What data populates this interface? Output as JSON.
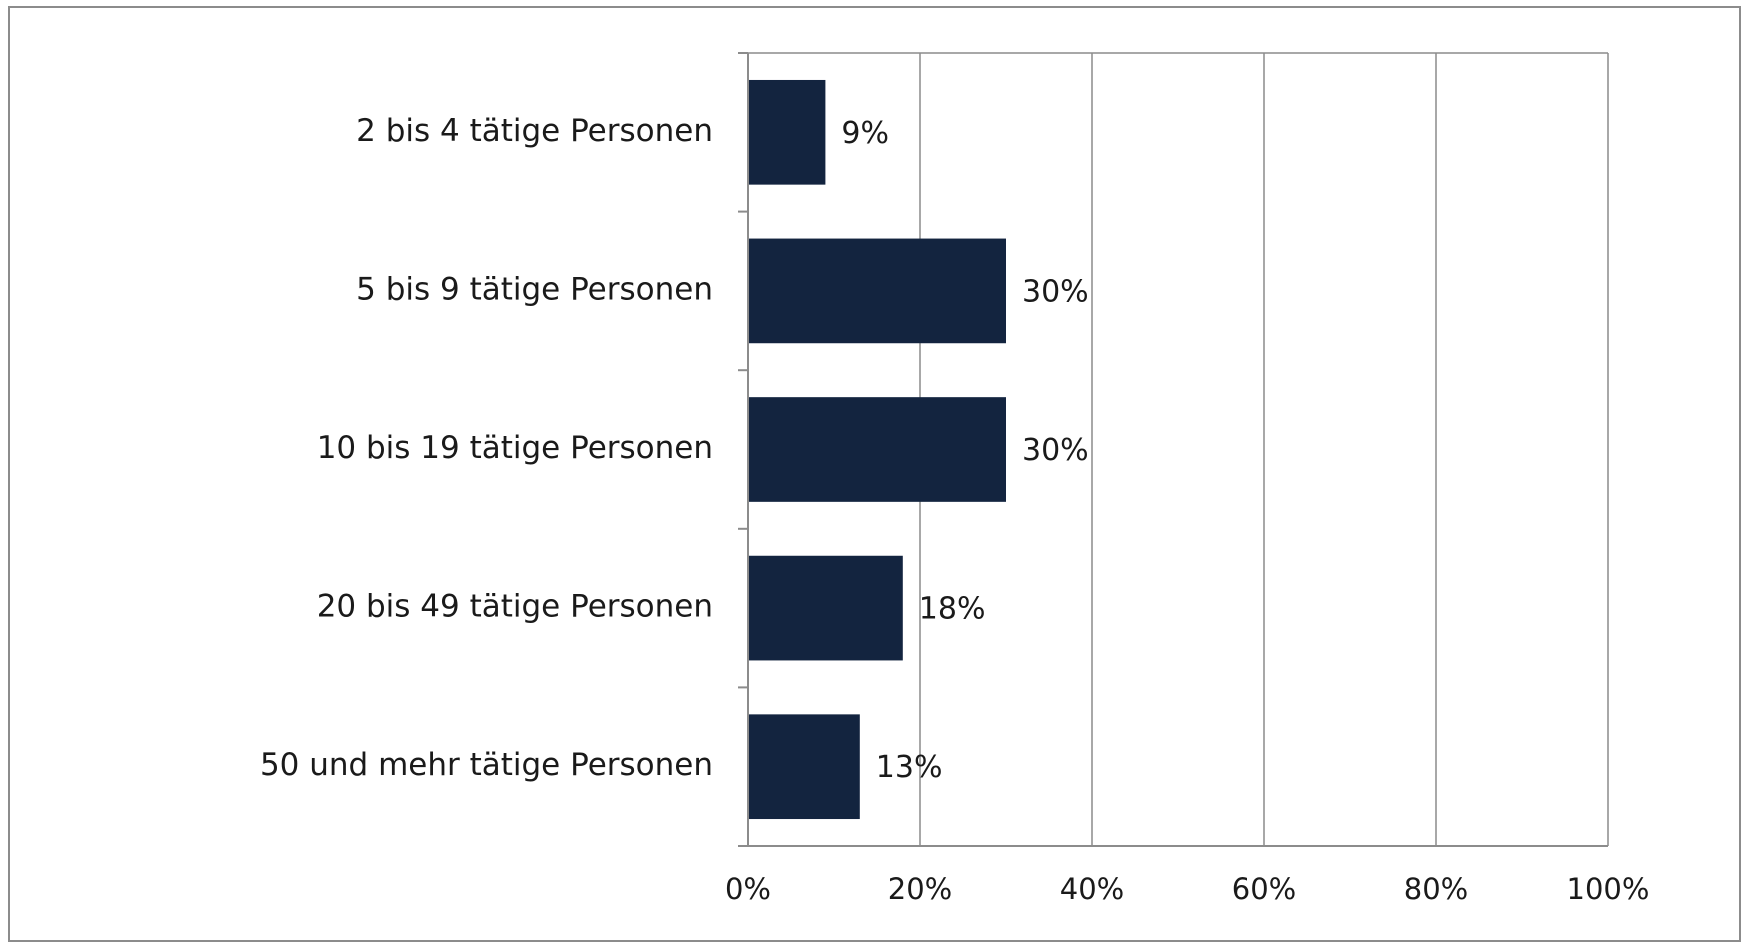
{
  "chart_data": {
    "type": "bar",
    "orientation": "horizontal",
    "categories": [
      "2 bis 4 tätige Personen",
      "5 bis 9 tätige Personen",
      "10 bis 19 tätige Personen",
      "20 bis 49 tätige Personen",
      "50 und mehr tätige Personen"
    ],
    "values": [
      9,
      30,
      30,
      18,
      13
    ],
    "value_labels": [
      "9%",
      "30%",
      "30%",
      "18%",
      "13%"
    ],
    "xlim": [
      0,
      100
    ],
    "x_ticks": [
      0,
      20,
      40,
      60,
      80,
      100
    ],
    "x_tick_labels": [
      "0%",
      "20%",
      "40%",
      "60%",
      "80%",
      "100%"
    ],
    "title": "",
    "xlabel": "",
    "ylabel": "",
    "grid": "vertical",
    "legend": "none",
    "bar_color": "#13243f",
    "grid_color": "#8c8c8c"
  }
}
